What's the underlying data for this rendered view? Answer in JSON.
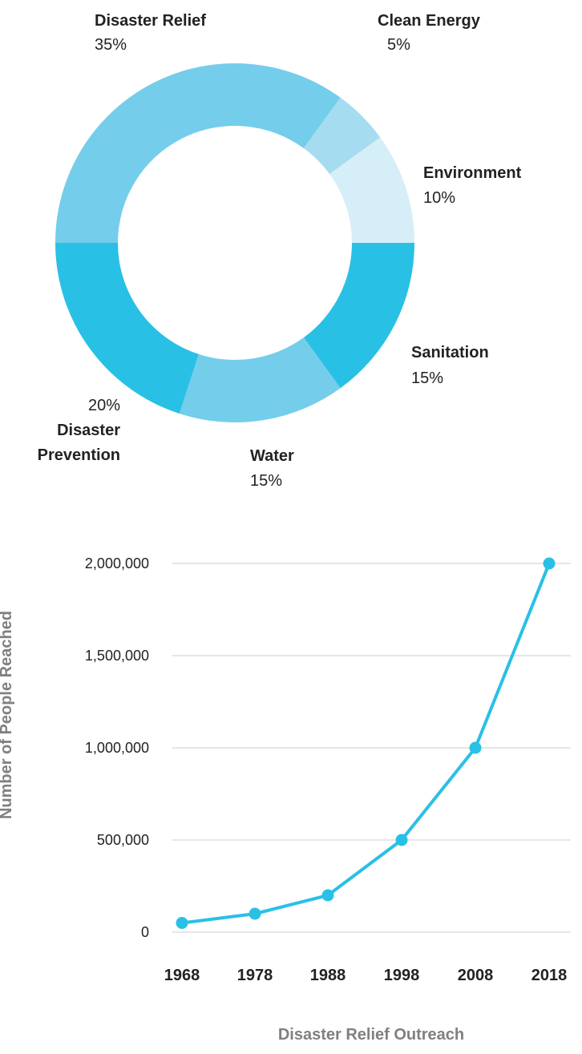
{
  "colors": {
    "primary": "#29c0e6",
    "medium": "#74cdea",
    "light": "#a5dcf0",
    "pale": "#d6eef8",
    "grid": "#e6e6e6",
    "axis_title": "#808080"
  },
  "chart_data": [
    {
      "type": "pie",
      "donut": true,
      "slices": [
        {
          "label": "Disaster Relief",
          "value": 35,
          "pct_text": "35%",
          "color": "#74cdea"
        },
        {
          "label": "Clean Energy",
          "value": 5,
          "pct_text": "5%",
          "color": "#a5dcf0"
        },
        {
          "label": "Environment",
          "value": 10,
          "pct_text": "10%",
          "color": "#d6eef8"
        },
        {
          "label": "Sanitation",
          "value": 15,
          "pct_text": "15%",
          "color": "#29c0e6"
        },
        {
          "label": "Water",
          "value": 15,
          "pct_text": "15%",
          "color": "#74cdea"
        },
        {
          "label": "Disaster Prevention",
          "label_lines": [
            "Disaster",
            "Prevention"
          ],
          "value": 20,
          "pct_text": "20%",
          "color": "#29c0e6"
        }
      ]
    },
    {
      "type": "line",
      "title": "Disaster Relief Outreach",
      "xlabel": "",
      "ylabel": "Number of People Reached",
      "x": [
        "1968",
        "1978",
        "1988",
        "1998",
        "2008",
        "2018"
      ],
      "series": [
        {
          "values": [
            50000,
            100000,
            200000,
            500000,
            1000000,
            2000000
          ],
          "color": "#29c0e6"
        }
      ],
      "yticks": [
        0,
        500000,
        1000000,
        1500000,
        2000000
      ],
      "ytick_labels": [
        "0",
        "500,000",
        "1,000,000",
        "1,500,000",
        "2,000,000"
      ],
      "ylim": [
        0,
        2000000
      ],
      "grid": true,
      "markers": true
    }
  ]
}
